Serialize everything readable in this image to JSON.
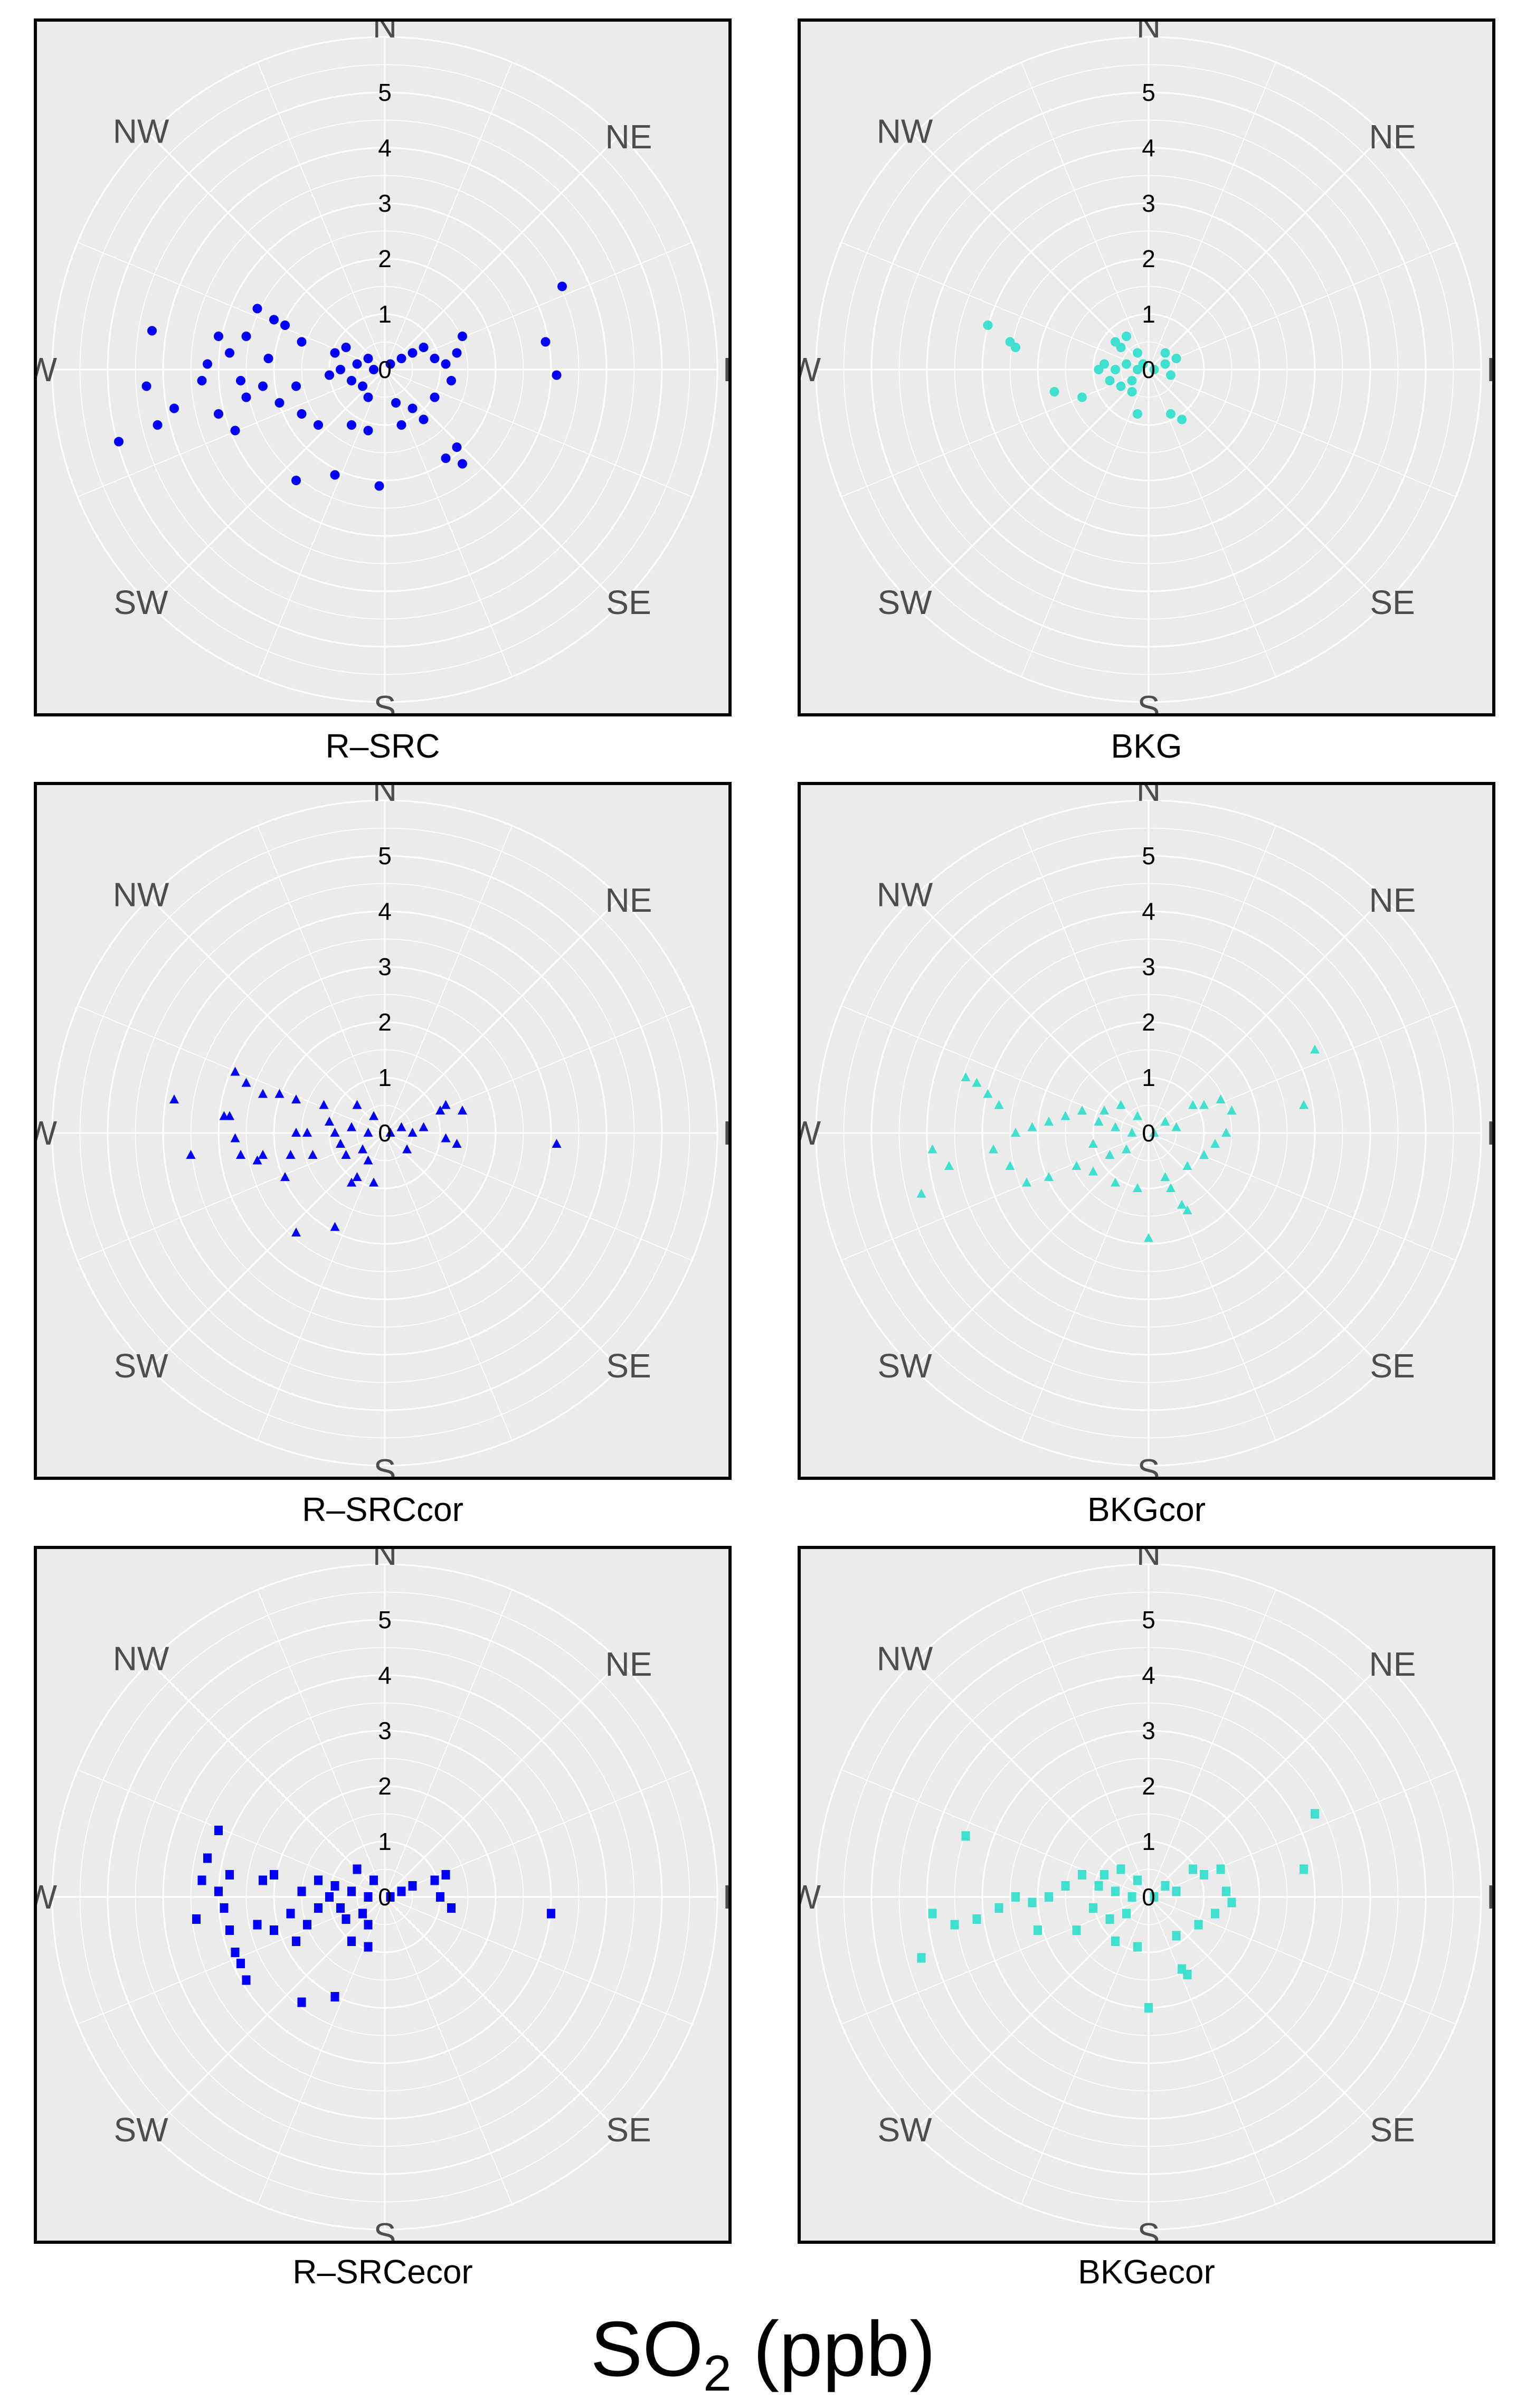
{
  "figure": {
    "title_main": "SO",
    "title_sub": "2",
    "title_rest": " (ppb)"
  },
  "chart_data": [
    {
      "type": "scatter",
      "subtype": "polar",
      "title": "R–SRC",
      "marker": "circle",
      "color": "#0000ff",
      "rlabel": "SO2 (ppb)",
      "rlim": [
        0,
        6
      ],
      "rticks": [
        0,
        1,
        2,
        3,
        4,
        5
      ],
      "theta_labels": [
        "N",
        "NE",
        "E",
        "SE",
        "S",
        "SW",
        "W",
        "NW"
      ],
      "points": [
        [
          -0.5,
          0.1
        ],
        [
          -0.8,
          0
        ],
        [
          -0.3,
          0.2
        ],
        [
          -0.6,
          -0.2
        ],
        [
          -0.9,
          0.3
        ],
        [
          -0.4,
          -0.3
        ],
        [
          -1.0,
          -0.1
        ],
        [
          -0.2,
          0
        ],
        [
          -0.7,
          0.4
        ],
        [
          -0.3,
          -0.5
        ],
        [
          0.1,
          0.1
        ],
        [
          0.3,
          0.2
        ],
        [
          0.5,
          0.3
        ],
        [
          0.7,
          0.4
        ],
        [
          0.9,
          0.2
        ],
        [
          1.1,
          0.1
        ],
        [
          1.2,
          -0.2
        ],
        [
          0.9,
          -0.5
        ],
        [
          0.5,
          -0.7
        ],
        [
          0.2,
          -0.6
        ],
        [
          -1.5,
          0.5
        ],
        [
          -1.8,
          0.8
        ],
        [
          -2.0,
          0.9
        ],
        [
          -2.3,
          1.1
        ],
        [
          -2.5,
          0.6
        ],
        [
          -2.8,
          0.3
        ],
        [
          -3.0,
          0.6
        ],
        [
          -3.2,
          0.1
        ],
        [
          -3.3,
          -0.2
        ],
        [
          -3.0,
          -0.8
        ],
        [
          -2.7,
          -1.1
        ],
        [
          -2.5,
          -0.5
        ],
        [
          -2.2,
          -0.3
        ],
        [
          -1.9,
          -0.6
        ],
        [
          -1.5,
          -0.8
        ],
        [
          -1.2,
          -1.0
        ],
        [
          -1.6,
          -0.3
        ],
        [
          -2.1,
          0.2
        ],
        [
          -2.6,
          -0.2
        ],
        [
          -4.2,
          0.7
        ],
        [
          -4.3,
          -0.3
        ],
        [
          -4.1,
          -1.0
        ],
        [
          -4.8,
          -1.3
        ],
        [
          -3.8,
          -0.7
        ],
        [
          -0.6,
          -1.0
        ],
        [
          -0.3,
          -1.1
        ],
        [
          0.3,
          -1.0
        ],
        [
          0.7,
          -0.9
        ],
        [
          -1.6,
          -2.0
        ],
        [
          -0.9,
          -1.9
        ],
        [
          -0.1,
          -2.1
        ],
        [
          1.1,
          -1.6
        ],
        [
          1.3,
          -1.4
        ],
        [
          1.4,
          -1.7
        ],
        [
          3.1,
          -0.1
        ],
        [
          2.9,
          0.5
        ],
        [
          3.2,
          1.5
        ],
        [
          1.4,
          0.6
        ],
        [
          1.3,
          0.3
        ]
      ]
    },
    {
      "type": "scatter",
      "subtype": "polar",
      "title": "BKG",
      "marker": "circle",
      "color": "#40e0d0",
      "rlim": [
        0,
        6
      ],
      "rticks": [
        0,
        1,
        2,
        3,
        4,
        5
      ],
      "theta_labels": [
        "N",
        "NE",
        "E",
        "SE",
        "S",
        "SW",
        "W",
        "NW"
      ],
      "points": [
        [
          -0.2,
          0
        ],
        [
          -0.4,
          0.1
        ],
        [
          -0.6,
          0
        ],
        [
          -0.8,
          0.1
        ],
        [
          -0.3,
          -0.2
        ],
        [
          -0.5,
          -0.3
        ],
        [
          -0.7,
          -0.2
        ],
        [
          -0.1,
          0.1
        ],
        [
          0.1,
          0
        ],
        [
          0.3,
          0.1
        ],
        [
          -0.5,
          0.4
        ],
        [
          -0.4,
          0.6
        ],
        [
          -0.6,
          0.5
        ],
        [
          -0.9,
          0
        ],
        [
          -0.3,
          -0.4
        ],
        [
          0.4,
          -0.1
        ],
        [
          0.5,
          0.2
        ],
        [
          0.3,
          0.3
        ],
        [
          -0.2,
          0.3
        ],
        [
          -2.9,
          0.8
        ],
        [
          -2.5,
          0.5
        ],
        [
          -2.4,
          0.4
        ],
        [
          -1.7,
          -0.4
        ],
        [
          -1.2,
          -0.5
        ],
        [
          -0.2,
          -0.8
        ],
        [
          0.4,
          -0.8
        ],
        [
          0.6,
          -0.9
        ]
      ]
    },
    {
      "type": "scatter",
      "subtype": "polar",
      "title": "R–SRCcor",
      "marker": "triangle",
      "color": "#0000ff",
      "rlim": [
        0,
        6
      ],
      "rticks": [
        0,
        1,
        2,
        3,
        4,
        5
      ],
      "theta_labels": [
        "N",
        "NE",
        "E",
        "SE",
        "S",
        "SW",
        "W",
        "NW"
      ],
      "points": [
        [
          -0.3,
          0
        ],
        [
          -0.6,
          0.1
        ],
        [
          -0.9,
          0
        ],
        [
          -0.4,
          -0.3
        ],
        [
          -0.7,
          -0.4
        ],
        [
          -1.0,
          0.2
        ],
        [
          -0.2,
          0.3
        ],
        [
          -0.5,
          0.5
        ],
        [
          -0.8,
          -0.2
        ],
        [
          0.1,
          0
        ],
        [
          0.3,
          0.1
        ],
        [
          0.5,
          0
        ],
        [
          0.7,
          0.1
        ],
        [
          0.4,
          -0.3
        ],
        [
          -0.3,
          -0.5
        ],
        [
          -0.5,
          -0.8
        ],
        [
          -0.2,
          -0.9
        ],
        [
          -0.6,
          -0.9
        ],
        [
          -1.1,
          0.5
        ],
        [
          -1.3,
          -0.4
        ],
        [
          -1.6,
          0.6
        ],
        [
          -1.9,
          0.7
        ],
        [
          -2.2,
          0.7
        ],
        [
          -2.5,
          0.9
        ],
        [
          -2.7,
          1.1
        ],
        [
          -2.8,
          0.3
        ],
        [
          -2.9,
          0.3
        ],
        [
          -2.7,
          -0.1
        ],
        [
          -2.6,
          -0.4
        ],
        [
          -2.2,
          -0.4
        ],
        [
          -1.7,
          -0.4
        ],
        [
          -1.6,
          0
        ],
        [
          -1.4,
          0
        ],
        [
          -1.8,
          -0.8
        ],
        [
          -2.3,
          -0.5
        ],
        [
          -3.8,
          0.6
        ],
        [
          -3.5,
          -0.4
        ],
        [
          1.0,
          0.4
        ],
        [
          1.1,
          0.5
        ],
        [
          1.1,
          -0.1
        ],
        [
          1.4,
          0.4
        ],
        [
          1.3,
          -0.2
        ],
        [
          -1.6,
          -1.8
        ],
        [
          -0.9,
          -1.7
        ],
        [
          3.1,
          -0.2
        ]
      ]
    },
    {
      "type": "scatter",
      "subtype": "polar",
      "title": "BKGcor",
      "marker": "triangle",
      "color": "#40e0d0",
      "rlim": [
        0,
        6
      ],
      "rticks": [
        0,
        1,
        2,
        3,
        4,
        5
      ],
      "theta_labels": [
        "N",
        "NE",
        "E",
        "SE",
        "S",
        "SW",
        "W",
        "NW"
      ],
      "points": [
        [
          -0.3,
          0
        ],
        [
          -0.6,
          0.1
        ],
        [
          -0.9,
          0.2
        ],
        [
          -0.4,
          -0.3
        ],
        [
          -0.7,
          -0.4
        ],
        [
          -1.0,
          -0.2
        ],
        [
          -0.2,
          0.3
        ],
        [
          -0.5,
          0.5
        ],
        [
          -0.8,
          0.4
        ],
        [
          0.1,
          0
        ],
        [
          0.3,
          0.2
        ],
        [
          0.5,
          0.1
        ],
        [
          -1.2,
          0.4
        ],
        [
          -1.5,
          0.3
        ],
        [
          -1.8,
          0.2
        ],
        [
          -2.1,
          0.1
        ],
        [
          -2.4,
          0
        ],
        [
          -2.7,
          0.5
        ],
        [
          -2.9,
          0.7
        ],
        [
          -3.1,
          0.9
        ],
        [
          -3.3,
          1.0
        ],
        [
          -2.8,
          -0.3
        ],
        [
          -2.5,
          -0.6
        ],
        [
          -2.2,
          -0.9
        ],
        [
          -1.8,
          -0.8
        ],
        [
          -1.3,
          -0.6
        ],
        [
          -1.0,
          -0.7
        ],
        [
          -3.9,
          -0.3
        ],
        [
          -4.1,
          -1.1
        ],
        [
          -3.6,
          -0.6
        ],
        [
          0.8,
          0.5
        ],
        [
          1.0,
          0.5
        ],
        [
          1.3,
          0.6
        ],
        [
          1.5,
          0.4
        ],
        [
          1.4,
          0
        ],
        [
          1.2,
          -0.2
        ],
        [
          1.0,
          -0.4
        ],
        [
          0.7,
          -0.6
        ],
        [
          0.3,
          -0.8
        ],
        [
          0.4,
          -1.0
        ],
        [
          0.6,
          -1.3
        ],
        [
          0.7,
          -1.4
        ],
        [
          0,
          -1.9
        ],
        [
          2.8,
          0.5
        ],
        [
          3.0,
          1.5
        ],
        [
          -0.2,
          -1.0
        ],
        [
          -0.6,
          -0.9
        ]
      ]
    },
    {
      "type": "scatter",
      "subtype": "polar",
      "title": "R–SRCecor",
      "marker": "square",
      "color": "#0000ff",
      "rlim": [
        0,
        6
      ],
      "rticks": [
        0,
        1,
        2,
        3,
        4,
        5
      ],
      "theta_labels": [
        "N",
        "NE",
        "E",
        "SE",
        "S",
        "SW",
        "W",
        "NW"
      ],
      "points": [
        [
          -0.3,
          0
        ],
        [
          -0.6,
          0.1
        ],
        [
          -0.9,
          0.2
        ],
        [
          -0.4,
          -0.3
        ],
        [
          -0.7,
          -0.4
        ],
        [
          -1.0,
          0
        ],
        [
          -0.2,
          0.3
        ],
        [
          -0.5,
          0.5
        ],
        [
          -0.8,
          -0.2
        ],
        [
          0.1,
          0
        ],
        [
          0.3,
          0.1
        ],
        [
          -0.3,
          -0.5
        ],
        [
          -0.6,
          -0.8
        ],
        [
          -0.3,
          -0.9
        ],
        [
          -1.2,
          0.3
        ],
        [
          -1.5,
          0.1
        ],
        [
          -1.7,
          -0.3
        ],
        [
          -2.0,
          0.4
        ],
        [
          -2.2,
          0.3
        ],
        [
          -2.8,
          0.4
        ],
        [
          -3.2,
          0.7
        ],
        [
          -3.3,
          0.3
        ],
        [
          -3.0,
          0.1
        ],
        [
          -2.9,
          -0.2
        ],
        [
          -2.8,
          -0.6
        ],
        [
          -2.7,
          -1.0
        ],
        [
          -2.6,
          -1.2
        ],
        [
          -2.5,
          -1.5
        ],
        [
          -3.4,
          -0.4
        ],
        [
          -2.3,
          -0.5
        ],
        [
          -2.0,
          -0.6
        ],
        [
          -1.4,
          -0.5
        ],
        [
          -1.6,
          -0.8
        ],
        [
          -1.2,
          -0.2
        ],
        [
          -3.0,
          1.2
        ],
        [
          0.5,
          0.2
        ],
        [
          0.9,
          0.3
        ],
        [
          1.1,
          0.4
        ],
        [
          1.0,
          0
        ],
        [
          1.2,
          -0.2
        ],
        [
          -1.5,
          -1.9
        ],
        [
          -0.9,
          -1.8
        ],
        [
          3.0,
          -0.3
        ]
      ]
    },
    {
      "type": "scatter",
      "subtype": "polar",
      "title": "BKGecor",
      "marker": "square",
      "color": "#40e0d0",
      "rlim": [
        0,
        6
      ],
      "rticks": [
        0,
        1,
        2,
        3,
        4,
        5
      ],
      "theta_labels": [
        "N",
        "NE",
        "E",
        "SE",
        "S",
        "SW",
        "W",
        "NW"
      ],
      "points": [
        [
          -0.3,
          0
        ],
        [
          -0.6,
          0.1
        ],
        [
          -0.9,
          0.2
        ],
        [
          -0.4,
          -0.3
        ],
        [
          -0.7,
          -0.4
        ],
        [
          -1.0,
          -0.2
        ],
        [
          -0.2,
          0.3
        ],
        [
          -0.5,
          0.5
        ],
        [
          -0.8,
          0.4
        ],
        [
          0.1,
          0
        ],
        [
          0.3,
          0.2
        ],
        [
          0.5,
          0.1
        ],
        [
          -1.2,
          0.4
        ],
        [
          -1.5,
          0.2
        ],
        [
          -1.8,
          0
        ],
        [
          -2.1,
          -0.1
        ],
        [
          -2.4,
          0
        ],
        [
          -2.7,
          -0.2
        ],
        [
          -3.1,
          -0.4
        ],
        [
          -3.5,
          -0.5
        ],
        [
          -3.9,
          -0.3
        ],
        [
          -4.1,
          -1.1
        ],
        [
          -3.3,
          1.1
        ],
        [
          -2.0,
          -0.6
        ],
        [
          -1.3,
          -0.6
        ],
        [
          0.8,
          0.5
        ],
        [
          1.0,
          0.4
        ],
        [
          1.3,
          0.5
        ],
        [
          1.4,
          0.1
        ],
        [
          1.2,
          -0.3
        ],
        [
          0.9,
          -0.5
        ],
        [
          0.5,
          -0.7
        ],
        [
          0.6,
          -1.3
        ],
        [
          0.7,
          -1.4
        ],
        [
          0,
          -2.0
        ],
        [
          2.8,
          0.5
        ],
        [
          3.0,
          1.5
        ],
        [
          -0.2,
          -0.9
        ],
        [
          -0.6,
          -0.8
        ],
        [
          1.5,
          -0.1
        ]
      ]
    }
  ]
}
